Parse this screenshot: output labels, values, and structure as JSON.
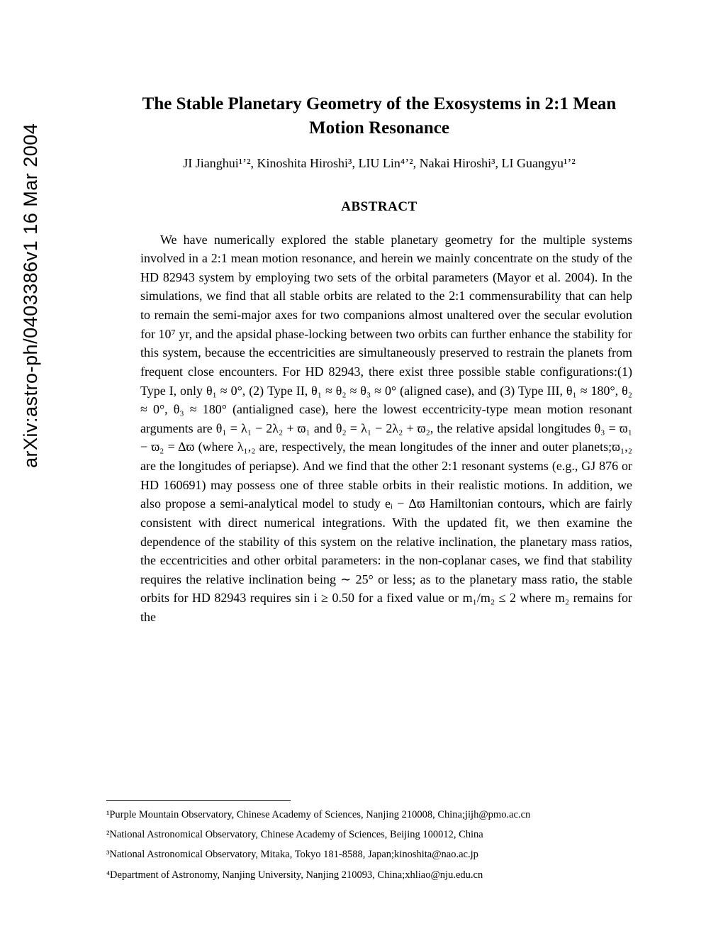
{
  "arxiv": "arXiv:astro-ph/0403386v1  16 Mar 2004",
  "title_line1": "The Stable Planetary Geometry of the Exosystems in 2:1 Mean",
  "title_line2": "Motion Resonance",
  "authors": "JI Jianghui¹ʼ², Kinoshita Hiroshi³, LIU Lin⁴ʼ², Nakai Hiroshi³, LI Guangyu¹ʼ²",
  "abstract_heading": "ABSTRACT",
  "abstract_body": "We have numerically explored the stable planetary geometry for the multiple systems involved in a 2:1 mean motion resonance, and herein we mainly concentrate on the study of the HD 82943 system by employing two sets of the orbital parameters (Mayor et al. 2004). In the simulations, we find that all stable orbits are related to the 2:1 commensurability that can help to remain the semi-major axes for two companions almost unaltered over the secular evolution for 10⁷ yr, and the apsidal phase-locking between two orbits can further enhance the stability for this system, because the eccentricities are simultaneously preserved to restrain the planets from frequent close encounters. For HD 82943, there exist three possible stable configurations:(1) Type I, only θ₁ ≈ 0°, (2) Type II, θ₁ ≈ θ₂ ≈ θ₃ ≈ 0° (aligned case), and (3) Type III, θ₁ ≈ 180°, θ₂ ≈ 0°, θ₃ ≈ 180° (antialigned case), here the lowest eccentricity-type mean motion resonant arguments are θ₁ = λ₁ − 2λ₂ + ϖ₁ and θ₂ = λ₁ − 2λ₂ + ϖ₂, the relative apsidal longitudes θ₃ = ϖ₁ − ϖ₂ = Δϖ (where λ₁,₂ are, respectively, the mean longitudes of the inner and outer planets;ϖ₁,₂ are the longitudes of periapse). And we find that the other 2:1 resonant systems (e.g., GJ 876 or HD 160691) may possess one of three stable orbits in their realistic motions. In addition, we also propose a semi-analytical model to study eᵢ − Δϖ Hamiltonian contours, which are fairly consistent with direct numerical integrations. With the updated fit, we then examine the dependence of the stability of this system on the relative inclination, the planetary mass ratios, the eccentricities and other orbital parameters: in the non-coplanar cases, we find that stability requires the relative inclination being ∼ 25° or less; as to the planetary mass ratio, the stable orbits for HD 82943 requires sin i ≥ 0.50 for a fixed value or m₁/m₂ ≤ 2 where m₂ remains for the",
  "footnotes": {
    "f1": "¹Purple Mountain Observatory, Chinese Academy of Sciences, Nanjing 210008, China;jijh@pmo.ac.cn",
    "f2": "²National Astronomical Observatory, Chinese Academy of Sciences, Beijing 100012, China",
    "f3": "³National Astronomical Observatory, Mitaka, Tokyo 181-8588, Japan;kinoshita@nao.ac.jp",
    "f4": "⁴Department of Astronomy, Nanjing University, Nanjing 210093, China;xhliao@nju.edu.cn"
  }
}
